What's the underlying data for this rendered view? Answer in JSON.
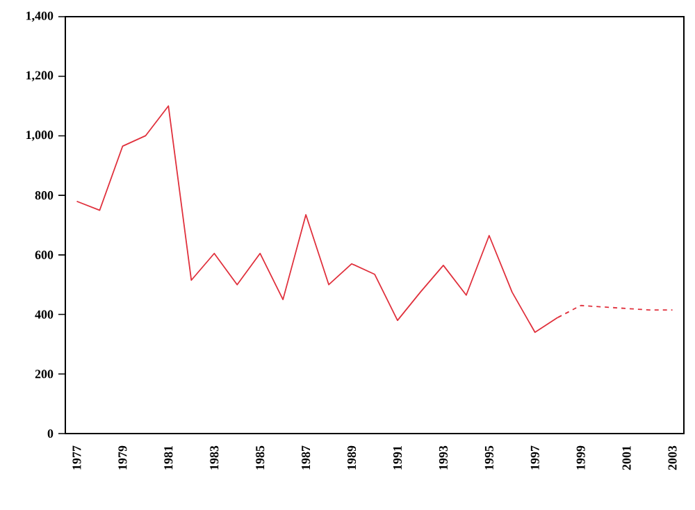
{
  "chart_data": {
    "type": "line",
    "categories": [
      "1977",
      null,
      "1979",
      null,
      "1981",
      null,
      "1983",
      null,
      "1985",
      null,
      "1987",
      null,
      "1989",
      null,
      "1991",
      null,
      "1993",
      null,
      "1995",
      null,
      "1997",
      null,
      "1999",
      null,
      "2001",
      null,
      "2003"
    ],
    "series": [
      {
        "color": "#e0303c",
        "line_style": "solid",
        "values": [
          780,
          750,
          965,
          1000,
          1100,
          515,
          605,
          500,
          605,
          450,
          735,
          500,
          570,
          535,
          380,
          475,
          565,
          465,
          665,
          475,
          340,
          390,
          null,
          null,
          null,
          null,
          null
        ]
      },
      {
        "color": "#e0303c",
        "line_style": "dashed",
        "values": [
          null,
          null,
          null,
          null,
          null,
          null,
          null,
          null,
          null,
          null,
          null,
          null,
          null,
          null,
          null,
          null,
          null,
          null,
          null,
          null,
          null,
          390,
          430,
          425,
          420,
          415,
          415
        ]
      }
    ],
    "ylim": [
      0,
      1400
    ],
    "yticks": [
      0,
      200,
      400,
      600,
      800,
      {
        "value": 1000,
        "label": "1,000"
      },
      {
        "value": 1200,
        "label": "1,200"
      },
      {
        "value": 1400,
        "label": "1,400"
      }
    ],
    "grid": false,
    "marker": "none"
  }
}
